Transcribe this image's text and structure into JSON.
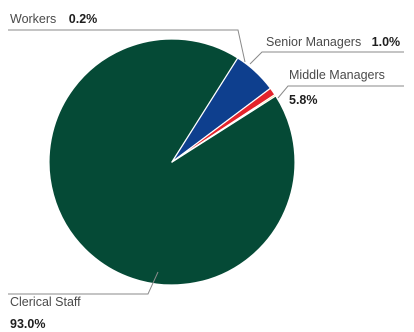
{
  "chart_data": {
    "type": "pie",
    "slices": [
      {
        "label": "Clerical Staff",
        "value": 93.0,
        "value_label": "93.0%",
        "color": "#054a36"
      },
      {
        "label": "Middle Managers",
        "value": 5.8,
        "value_label": "5.8%",
        "color": "#0e3f8e"
      },
      {
        "label": "Senior Managers",
        "value": 1.0,
        "value_label": "1.0%",
        "color": "#e4232b"
      },
      {
        "label": "Workers",
        "value": 0.2,
        "value_label": "0.2%",
        "color": "#f2c618"
      }
    ],
    "legend": "none"
  }
}
